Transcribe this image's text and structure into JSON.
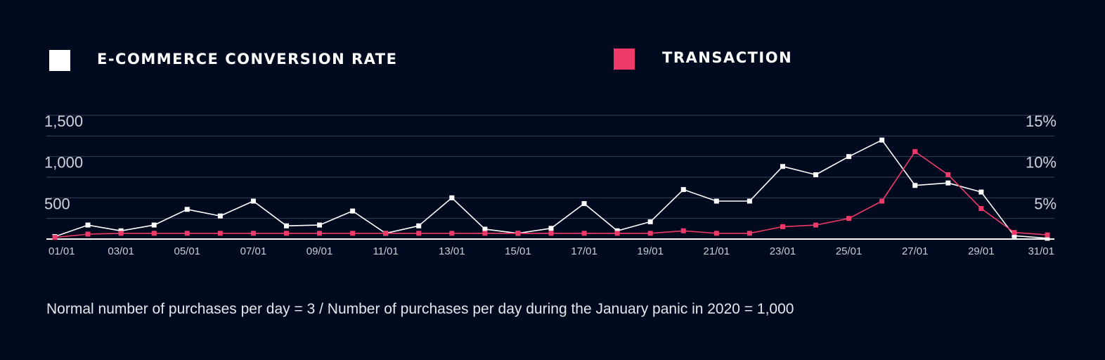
{
  "chart_data": {
    "type": "line",
    "legend": [
      {
        "label": "E-COMMERCE CONVERSION RATE",
        "color": "#ffffff"
      },
      {
        "label": "TRANSACTION",
        "color": "#ee3a69"
      }
    ],
    "x": [
      "01/01",
      "02/01",
      "03/01",
      "04/01",
      "05/01",
      "06/01",
      "07/01",
      "08/01",
      "09/01",
      "10/01",
      "11/01",
      "12/01",
      "13/01",
      "14/01",
      "15/01",
      "16/01",
      "17/01",
      "18/01",
      "19/01",
      "20/01",
      "21/01",
      "22/01",
      "23/01",
      "24/01",
      "25/01",
      "26/01",
      "27/01",
      "28/01",
      "29/01",
      "30/01",
      "31/01"
    ],
    "x_tick_labels": [
      "01/01",
      "03/01",
      "05/01",
      "07/01",
      "09/01",
      "11/01",
      "13/01",
      "15/01",
      "17/01",
      "19/01",
      "21/01",
      "23/01",
      "25/01",
      "27/01",
      "29/01",
      "31/01"
    ],
    "y_left_ticks": [
      "1,500",
      "1,000",
      "500"
    ],
    "y_left_tick_values": [
      1500,
      1000,
      500
    ],
    "y_right_ticks": [
      "15%",
      "10%",
      "5%"
    ],
    "y_right_tick_values": [
      15,
      10,
      5
    ],
    "ylim_left": [
      0,
      1500
    ],
    "ylim_right": [
      0,
      15
    ],
    "grid": true,
    "legend_position": "top",
    "series": [
      {
        "name": "E-COMMERCE CONVERSION RATE",
        "axis": "right",
        "color": "#ffffff",
        "values": [
          0.3,
          1.7,
          1.0,
          1.7,
          3.6,
          2.8,
          4.6,
          1.6,
          1.7,
          3.4,
          0.7,
          1.6,
          5.0,
          1.2,
          0.7,
          1.3,
          4.3,
          1.0,
          2.1,
          6.0,
          4.6,
          4.6,
          8.8,
          7.8,
          10.0,
          12.0,
          6.5,
          6.8,
          5.7,
          0.4,
          0.1
        ]
      },
      {
        "name": "TRANSACTION",
        "axis": "left",
        "color": "#ee3a69",
        "values": [
          20,
          60,
          70,
          70,
          70,
          70,
          70,
          70,
          70,
          70,
          70,
          70,
          70,
          70,
          70,
          70,
          70,
          70,
          70,
          100,
          70,
          70,
          150,
          170,
          250,
          460,
          1060,
          780,
          370,
          80,
          50
        ]
      }
    ]
  },
  "footnote": "Normal number of purchases per day = 3 / Number of purchases per day during the January panic in 2020 = 1,000"
}
